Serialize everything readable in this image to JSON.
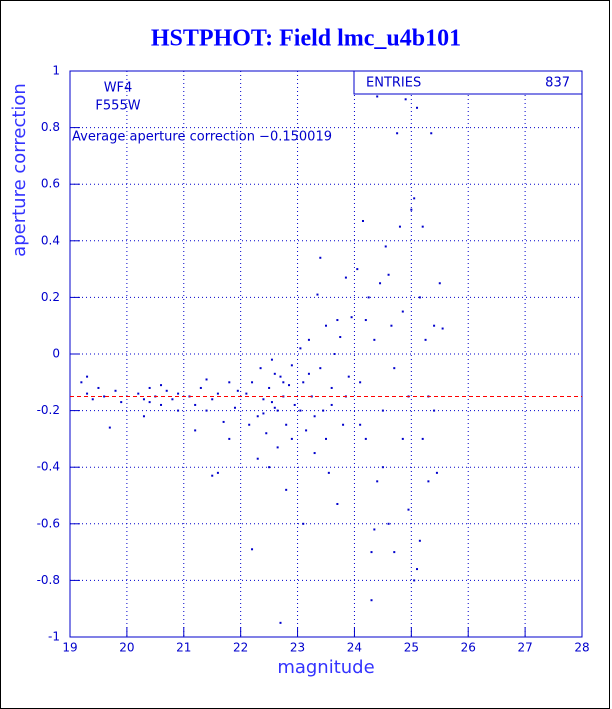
{
  "chart_data": {
    "type": "scatter",
    "title": "HSTPHOT: Field lmc_u4b101",
    "x_label": "magnitude",
    "y_label": "aperture correction",
    "annotations": [
      "WF4",
      "F555W",
      "Average aperture correction −0.150019"
    ],
    "stats": {
      "label": "ENTRIES",
      "value": 837
    },
    "reference_line": {
      "value": -0.150019,
      "color": "#ff0000"
    },
    "xlim": [
      19,
      28
    ],
    "xticks": [
      19,
      20,
      21,
      22,
      23,
      24,
      25,
      26,
      27,
      28
    ],
    "ylim": [
      -1,
      1
    ],
    "yticks": [
      -1,
      -0.8,
      -0.6,
      -0.4,
      -0.2,
      0,
      0.2,
      0.4,
      0.6,
      0.8,
      1
    ],
    "grid": true,
    "series": [
      {
        "color": "#0000cc",
        "x": [
          19.2,
          19.3,
          19.4,
          19.5,
          19.6,
          19.7,
          19.8,
          19.3,
          19.9,
          20.2,
          20.3,
          20.4,
          20.5,
          20.6,
          20.7,
          20.8,
          20.9,
          20.3,
          20.6,
          20.9,
          20.4,
          21.1,
          21.2,
          21.3,
          21.4,
          21.5,
          21.6,
          21.7,
          21.8,
          21.9,
          21.5,
          21.6,
          21.2,
          21.4,
          21.8,
          21.95,
          22.1,
          22.2,
          22.3,
          22.35,
          22.4,
          22.45,
          22.5,
          22.55,
          22.6,
          22.65,
          22.7,
          22.75,
          22.8,
          22.85,
          22.9,
          22.95,
          22.2,
          22.7,
          22.8,
          22.5,
          22.3,
          22.6,
          22.4,
          22.9,
          22.15,
          22.55,
          22.75,
          22.65,
          23.05,
          23.1,
          23.15,
          23.2,
          23.25,
          23.3,
          23.35,
          23.4,
          23.45,
          23.5,
          23.55,
          23.6,
          23.65,
          23.7,
          23.75,
          23.8,
          23.85,
          23.9,
          23.95,
          23.4,
          23.1,
          23.6,
          23.2,
          23.3,
          23.7,
          23.5,
          23.85,
          23.05,
          24.05,
          24.1,
          24.15,
          24.2,
          24.25,
          24.3,
          24.35,
          24.4,
          24.45,
          24.5,
          24.55,
          24.6,
          24.65,
          24.7,
          24.75,
          24.8,
          24.85,
          24.9,
          24.95,
          24.4,
          24.3,
          24.6,
          24.7,
          24.85,
          24.2,
          24.5,
          24.95,
          24.1,
          24.35,
          25.05,
          25.1,
          25.15,
          25.2,
          25.25,
          25.3,
          25.35,
          25.4,
          25.45,
          25.5,
          25.55,
          25.1,
          25.05,
          25.2,
          25.3,
          25.4,
          25.0,
          25.15
        ],
        "values": [
          -0.1,
          -0.14,
          -0.16,
          -0.12,
          -0.15,
          -0.26,
          -0.13,
          -0.08,
          -0.17,
          -0.14,
          -0.16,
          -0.12,
          -0.15,
          -0.18,
          -0.13,
          -0.16,
          -0.14,
          -0.22,
          -0.11,
          -0.2,
          -0.17,
          -0.15,
          -0.18,
          -0.12,
          -0.2,
          -0.16,
          -0.14,
          -0.24,
          -0.1,
          -0.19,
          -0.43,
          -0.42,
          -0.27,
          -0.09,
          -0.3,
          -0.13,
          -0.14,
          -0.1,
          -0.22,
          -0.05,
          -0.16,
          -0.28,
          -0.12,
          -0.02,
          -0.19,
          -0.33,
          -0.08,
          -0.15,
          -0.25,
          -0.11,
          -0.04,
          -0.18,
          -0.69,
          -0.95,
          -0.48,
          -0.4,
          -0.37,
          -0.07,
          -0.21,
          -0.3,
          -0.25,
          -0.17,
          -0.1,
          -0.2,
          0.02,
          -0.1,
          -0.27,
          0.05,
          -0.15,
          -0.35,
          0.21,
          -0.05,
          -0.2,
          0.1,
          -0.42,
          -0.12,
          0.0,
          -0.53,
          0.06,
          -0.25,
          0.27,
          -0.08,
          0.13,
          0.34,
          -0.6,
          -0.18,
          -0.07,
          -0.22,
          0.12,
          -0.3,
          -0.15,
          -0.2,
          0.3,
          -0.1,
          0.47,
          -0.3,
          0.2,
          -0.87,
          0.05,
          -0.45,
          0.25,
          -0.2,
          0.38,
          -0.6,
          0.1,
          -0.7,
          0.78,
          0.45,
          -0.3,
          0.9,
          -0.15,
          0.91,
          -0.7,
          0.28,
          -0.05,
          0.15,
          0.12,
          -0.4,
          -0.55,
          -0.25,
          -0.62,
          0.55,
          -0.76,
          0.2,
          -0.3,
          0.05,
          -0.45,
          0.78,
          0.1,
          -0.42,
          0.25,
          0.09,
          0.87,
          -0.8,
          0.45,
          -0.15,
          -0.2,
          0.51,
          -0.66
        ]
      }
    ]
  }
}
